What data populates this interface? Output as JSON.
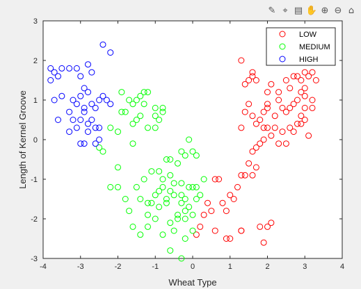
{
  "toolbar": {
    "icons": [
      "brush-icon",
      "data-cursor-icon",
      "legend-toggle-icon",
      "pan-hand-icon",
      "zoom-in-icon",
      "zoom-out-icon",
      "home-icon"
    ]
  },
  "chart_data": {
    "type": "scatter",
    "title": "",
    "xlabel": "Wheat Type",
    "ylabel": "Length of Kernel Groove",
    "xlim": [
      -4,
      4
    ],
    "ylim": [
      -3,
      3
    ],
    "xticks": [
      "-4",
      "-3",
      "-2",
      "-1",
      "0",
      "1",
      "2",
      "3",
      "4"
    ],
    "yticks": [
      "3",
      "2",
      "1",
      "0",
      "-1",
      "-2",
      "-3"
    ],
    "grid": false,
    "legend_position": "top-right",
    "marker": "open-circle",
    "series": [
      {
        "name": "LOW",
        "color": "#ff0000",
        "points": [
          [
            1.3,
            2.0
          ],
          [
            1.4,
            1.4
          ],
          [
            1.5,
            1.5
          ],
          [
            1.6,
            1.6
          ],
          [
            1.6,
            1.7
          ],
          [
            1.7,
            1.5
          ],
          [
            2.0,
            1.2
          ],
          [
            2.1,
            1.4
          ],
          [
            2.3,
            1.2
          ],
          [
            2.3,
            1.0
          ],
          [
            2.5,
            1.5
          ],
          [
            2.6,
            1.3
          ],
          [
            2.7,
            1.6
          ],
          [
            2.8,
            1.6
          ],
          [
            2.9,
            1.5
          ],
          [
            3.0,
            1.7
          ],
          [
            3.1,
            1.6
          ],
          [
            3.2,
            1.7
          ],
          [
            3.3,
            1.5
          ],
          [
            3.0,
            1.3
          ],
          [
            2.9,
            1.2
          ],
          [
            3.0,
            1.1
          ],
          [
            2.8,
            1.0
          ],
          [
            3.2,
            1.0
          ],
          [
            3.2,
            0.8
          ],
          [
            3.0,
            0.8
          ],
          [
            2.9,
            0.6
          ],
          [
            2.7,
            0.9
          ],
          [
            2.5,
            0.7
          ],
          [
            2.6,
            0.8
          ],
          [
            2.4,
            0.8
          ],
          [
            2.2,
            0.6
          ],
          [
            2.0,
            0.9
          ],
          [
            2.0,
            0.8
          ],
          [
            1.9,
            0.7
          ],
          [
            1.8,
            0.5
          ],
          [
            1.7,
            0.4
          ],
          [
            1.6,
            0.6
          ],
          [
            1.5,
            0.9
          ],
          [
            1.4,
            0.7
          ],
          [
            1.3,
            0.3
          ],
          [
            1.9,
            0.3
          ],
          [
            2.0,
            0.3
          ],
          [
            2.2,
            0.3
          ],
          [
            2.4,
            0.2
          ],
          [
            2.6,
            0.3
          ],
          [
            2.8,
            0.4
          ],
          [
            3.0,
            0.5
          ],
          [
            2.9,
            0.4
          ],
          [
            3.1,
            0.1
          ],
          [
            2.7,
            0.2
          ],
          [
            2.5,
            -0.1
          ],
          [
            2.3,
            -0.1
          ],
          [
            2.1,
            0.1
          ],
          [
            1.9,
            0.0
          ],
          [
            1.8,
            -0.1
          ],
          [
            1.7,
            -0.2
          ],
          [
            1.6,
            -0.3
          ],
          [
            1.7,
            -0.7
          ],
          [
            1.5,
            -0.6
          ],
          [
            1.4,
            -0.9
          ],
          [
            1.3,
            -0.9
          ],
          [
            1.2,
            -1.2
          ],
          [
            1.1,
            -1.5
          ],
          [
            1.0,
            -1.4
          ],
          [
            0.9,
            -1.8
          ],
          [
            0.8,
            -1.6
          ],
          [
            0.7,
            -1.0
          ],
          [
            0.6,
            -1.0
          ],
          [
            0.5,
            -1.8
          ],
          [
            0.4,
            -1.6
          ],
          [
            0.3,
            -1.9
          ],
          [
            0.2,
            -2.2
          ],
          [
            0.1,
            -2.4
          ],
          [
            0.6,
            -2.3
          ],
          [
            0.9,
            -2.5
          ],
          [
            1.0,
            -2.5
          ],
          [
            1.3,
            -2.3
          ],
          [
            1.8,
            -2.2
          ],
          [
            2.0,
            -2.2
          ],
          [
            1.9,
            -2.6
          ],
          [
            1.3,
            -2.3
          ],
          [
            2.1,
            -2.1
          ],
          [
            1.6,
            -0.9
          ]
        ]
      },
      {
        "name": "MEDIUM",
        "color": "#00ff00",
        "points": [
          [
            -2.5,
            -0.2
          ],
          [
            -2.4,
            -0.3
          ],
          [
            -2.2,
            0.3
          ],
          [
            -2.0,
            0.2
          ],
          [
            -1.9,
            0.7
          ],
          [
            -1.8,
            0.7
          ],
          [
            -1.9,
            1.2
          ],
          [
            -1.7,
            1.0
          ],
          [
            -1.6,
            0.9
          ],
          [
            -1.5,
            1.0
          ],
          [
            -1.4,
            1.1
          ],
          [
            -1.3,
            1.2
          ],
          [
            -1.2,
            1.2
          ],
          [
            -1.3,
            0.9
          ],
          [
            -1.4,
            0.6
          ],
          [
            -1.5,
            0.5
          ],
          [
            -1.6,
            0.4
          ],
          [
            -1.2,
            0.3
          ],
          [
            -1.0,
            0.6
          ],
          [
            -0.9,
            0.5
          ],
          [
            -0.8,
            0.8
          ],
          [
            -0.8,
            0.7
          ],
          [
            -1.0,
            0.8
          ],
          [
            -1.0,
            0.3
          ],
          [
            -0.3,
            -0.3
          ],
          [
            -0.1,
            0.0
          ],
          [
            0.0,
            -0.3
          ],
          [
            0.1,
            -0.4
          ],
          [
            -0.2,
            -0.4
          ],
          [
            -0.7,
            -0.5
          ],
          [
            -0.6,
            -0.5
          ],
          [
            -0.4,
            -0.6
          ],
          [
            -0.6,
            -0.9
          ],
          [
            -0.9,
            -0.8
          ],
          [
            -1.1,
            -0.8
          ],
          [
            -1.3,
            -1.0
          ],
          [
            -1.5,
            -1.2
          ],
          [
            -1.4,
            -1.5
          ],
          [
            -1.2,
            -1.6
          ],
          [
            -1.0,
            -1.4
          ],
          [
            -0.8,
            -1.2
          ],
          [
            -0.7,
            -1.6
          ],
          [
            -0.5,
            -1.4
          ],
          [
            -0.3,
            -1.4
          ],
          [
            -0.1,
            -1.2
          ],
          [
            0.0,
            -1.2
          ],
          [
            0.1,
            -1.2
          ],
          [
            0.2,
            -1.4
          ],
          [
            0.1,
            -1.5
          ],
          [
            -0.1,
            -1.7
          ],
          [
            -0.2,
            -1.8
          ],
          [
            -0.3,
            -1.6
          ],
          [
            -0.4,
            -2.0
          ],
          [
            -0.6,
            -2.1
          ],
          [
            -0.8,
            -2.4
          ],
          [
            -0.9,
            -1.7
          ],
          [
            -1.0,
            -2.0
          ],
          [
            -1.1,
            -1.6
          ],
          [
            -1.2,
            -2.2
          ],
          [
            -1.4,
            -2.4
          ],
          [
            -1.6,
            -2.2
          ],
          [
            -1.7,
            -1.8
          ],
          [
            -1.8,
            -1.5
          ],
          [
            -2.0,
            -1.2
          ],
          [
            -2.2,
            -1.2
          ],
          [
            -2.0,
            -0.7
          ],
          [
            -1.6,
            -0.1
          ],
          [
            -0.3,
            -3.0
          ],
          [
            -0.2,
            -2.5
          ],
          [
            0.0,
            -2.3
          ],
          [
            -0.5,
            -2.3
          ],
          [
            -0.6,
            -2.8
          ],
          [
            -0.4,
            -1.9
          ],
          [
            -0.2,
            -1.5
          ],
          [
            0.0,
            -1.9
          ],
          [
            -0.7,
            -1.5
          ],
          [
            -0.9,
            -1.3
          ],
          [
            -1.2,
            -1.9
          ],
          [
            -0.5,
            -1.1
          ],
          [
            -0.3,
            -1.1
          ],
          [
            -0.6,
            -1.3
          ],
          [
            0.3,
            -1.0
          ],
          [
            -0.2,
            -2.0
          ],
          [
            -0.8,
            -1.0
          ]
        ]
      },
      {
        "name": "HIGH",
        "color": "#0000ff",
        "points": [
          [
            -3.8,
            1.8
          ],
          [
            -3.7,
            1.7
          ],
          [
            -3.6,
            1.6
          ],
          [
            -3.5,
            1.8
          ],
          [
            -3.8,
            1.5
          ],
          [
            -3.3,
            1.8
          ],
          [
            -3.1,
            1.8
          ],
          [
            -3.0,
            1.6
          ],
          [
            -2.8,
            1.9
          ],
          [
            -2.7,
            1.7
          ],
          [
            -2.4,
            2.4
          ],
          [
            -2.2,
            2.2
          ],
          [
            -3.7,
            1.0
          ],
          [
            -3.5,
            1.1
          ],
          [
            -3.3,
            0.7
          ],
          [
            -3.2,
            0.5
          ],
          [
            -3.3,
            0.2
          ],
          [
            -3.1,
            0.3
          ],
          [
            -3.0,
            0.5
          ],
          [
            -2.9,
            0.7
          ],
          [
            -2.8,
            0.4
          ],
          [
            -2.7,
            0.5
          ],
          [
            -2.6,
            0.3
          ],
          [
            -2.5,
            0.3
          ],
          [
            -3.0,
            1.1
          ],
          [
            -2.9,
            1.3
          ],
          [
            -2.8,
            1.2
          ],
          [
            -2.7,
            0.9
          ],
          [
            -2.6,
            0.8
          ],
          [
            -2.5,
            1.0
          ],
          [
            -3.1,
            0.9
          ],
          [
            -2.4,
            1.1
          ],
          [
            -2.3,
            1.0
          ],
          [
            -2.9,
            0.8
          ],
          [
            -3.0,
            -0.1
          ],
          [
            -2.9,
            -0.1
          ],
          [
            -2.6,
            -0.1
          ],
          [
            -2.5,
            0.0
          ],
          [
            -3.6,
            0.5
          ],
          [
            -2.2,
            0.9
          ],
          [
            -2.8,
            0.2
          ],
          [
            -3.2,
            1.0
          ]
        ]
      }
    ]
  }
}
